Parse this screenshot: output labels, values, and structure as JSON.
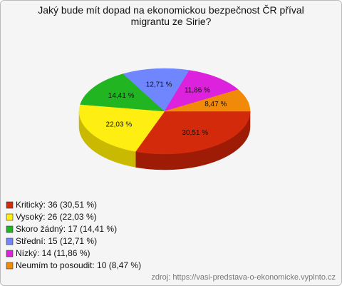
{
  "chart_data": {
    "type": "pie3d",
    "title": "Jaký bude mít dopad na ekonomickou bezpečnost ČR příval migrantu ze Sirie?",
    "series": [
      {
        "name": "Odpovědi",
        "categories": [
          "Kritický",
          "Vysoký",
          "Skoro žádný",
          "Střední",
          "Nízký",
          "Neumím to posoudit"
        ],
        "values": [
          30.51,
          22.03,
          14.41,
          12.71,
          11.86,
          8.47
        ],
        "value_labels": [
          "30,51 %",
          "22,03 %",
          "14,41 %",
          "12,71 %",
          "11,86 %",
          "8,47 %"
        ],
        "colors": [
          "#d42a0c",
          "#ffee11",
          "#22b522",
          "#6f86ff",
          "#dd22dd",
          "#f08a08"
        ],
        "side_colors": [
          "#9e1c06",
          "#c9b900",
          "#178217",
          "#4a5fc0",
          "#a315a3",
          "#b56500"
        ]
      }
    ],
    "legend_labels": [
      "Kritický: 36 (30,51 %)",
      "Vysoký: 26 (22,03 %)",
      "Skoro žádný: 17 (14,41 %)",
      "Střední: 15 (12,71 %)",
      "Nízký: 14 (11,86 %)",
      "Neumím to posoudit: 10 (8,47 %)"
    ],
    "source": "zdroj: https://vasi-predstava-o-ekonomicke.vyplnto.cz"
  }
}
